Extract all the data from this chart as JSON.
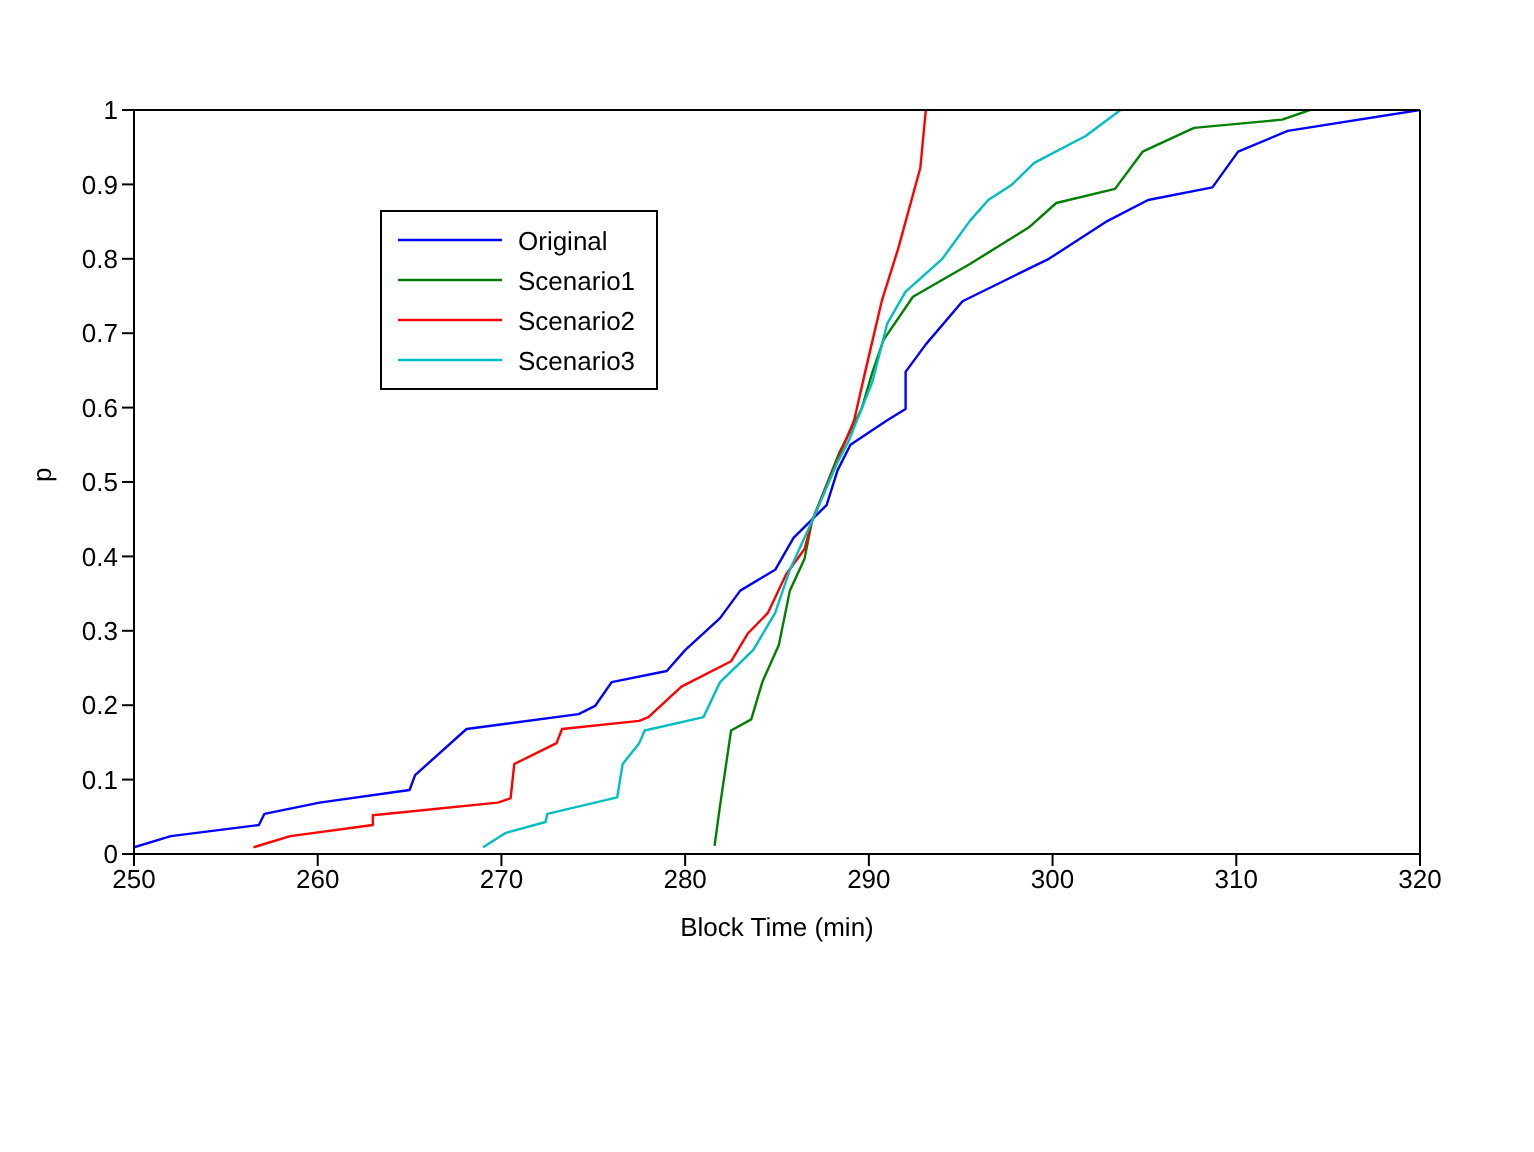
{
  "chart_data": {
    "type": "line",
    "xlabel": "Block Time (min)",
    "ylabel": "p",
    "xlim": [
      250,
      320
    ],
    "xticks": [
      250,
      260,
      270,
      280,
      290,
      300,
      310,
      320
    ],
    "ylim": [
      0,
      1
    ],
    "yticks": [
      0,
      0.1,
      0.2,
      0.3,
      0.4,
      0.5,
      0.6,
      0.7,
      0.8,
      0.9,
      1
    ],
    "legend": "top left",
    "marker": "none",
    "line_style": "solid",
    "series": [
      {
        "name": "Original",
        "color": "#0000ff",
        "x": [
          250,
          252,
          256.8,
          257.1,
          260.1,
          265,
          265.3,
          268.1,
          274.2,
          275.1,
          276,
          279,
          280,
          281.9,
          283,
          284.9,
          285.9,
          287.7,
          288.3,
          289,
          291,
          292,
          292,
          293.1,
          295.1,
          299.8,
          303,
          305.2,
          308.7,
          310.1,
          312.8,
          320
        ],
        "values": [
          0.009,
          0.024,
          0.039,
          0.054,
          0.069,
          0.086,
          0.106,
          0.168,
          0.188,
          0.199,
          0.231,
          0.246,
          0.274,
          0.317,
          0.354,
          0.382,
          0.425,
          0.469,
          0.516,
          0.55,
          0.583,
          0.598,
          0.648,
          0.685,
          0.743,
          0.8,
          0.851,
          0.879,
          0.896,
          0.944,
          0.972,
          1
        ]
      },
      {
        "name": "Scenario1",
        "color": "#008000",
        "x": [
          281.6,
          281.9,
          282.5,
          283.6,
          284.2,
          285.1,
          285.7,
          286.5,
          286.9,
          288.4,
          289.6,
          290.2,
          290.8,
          292.4,
          295.5,
          298.7,
          300.2,
          303.4,
          304.9,
          307.7,
          312.5,
          314
        ],
        "values": [
          0.011,
          0.065,
          0.166,
          0.181,
          0.231,
          0.281,
          0.354,
          0.397,
          0.447,
          0.54,
          0.598,
          0.648,
          0.691,
          0.749,
          0.793,
          0.842,
          0.875,
          0.894,
          0.944,
          0.976,
          0.987,
          1
        ]
      },
      {
        "name": "Scenario2",
        "color": "#ff0000",
        "x": [
          256.5,
          258.5,
          263,
          263,
          269.8,
          270.5,
          270.7,
          273,
          273.3,
          277.5,
          278,
          279.8,
          282.5,
          283.4,
          284.5,
          285.5,
          286.5,
          286.9,
          289.2,
          289.8,
          290.7,
          291.6,
          292.8,
          293.1
        ],
        "values": [
          0.009,
          0.024,
          0.039,
          0.052,
          0.069,
          0.075,
          0.121,
          0.149,
          0.168,
          0.179,
          0.184,
          0.225,
          0.259,
          0.296,
          0.324,
          0.376,
          0.41,
          0.447,
          0.583,
          0.648,
          0.743,
          0.814,
          0.922,
          1
        ]
      },
      {
        "name": "Scenario3",
        "color": "#00bfbf",
        "x": [
          269,
          270.2,
          272.4,
          272.5,
          276.3,
          276.6,
          277.5,
          277.8,
          281,
          281.9,
          283.7,
          284.9,
          285.7,
          286.9,
          288.3,
          288.9,
          290.2,
          291,
          292,
          294,
          295.5,
          296.5,
          297.8,
          299,
          301.8,
          303.7
        ],
        "values": [
          0.009,
          0.028,
          0.043,
          0.054,
          0.076,
          0.121,
          0.149,
          0.166,
          0.184,
          0.231,
          0.274,
          0.324,
          0.382,
          0.447,
          0.527,
          0.555,
          0.635,
          0.713,
          0.756,
          0.8,
          0.851,
          0.879,
          0.9,
          0.929,
          0.965,
          1
        ]
      }
    ]
  }
}
